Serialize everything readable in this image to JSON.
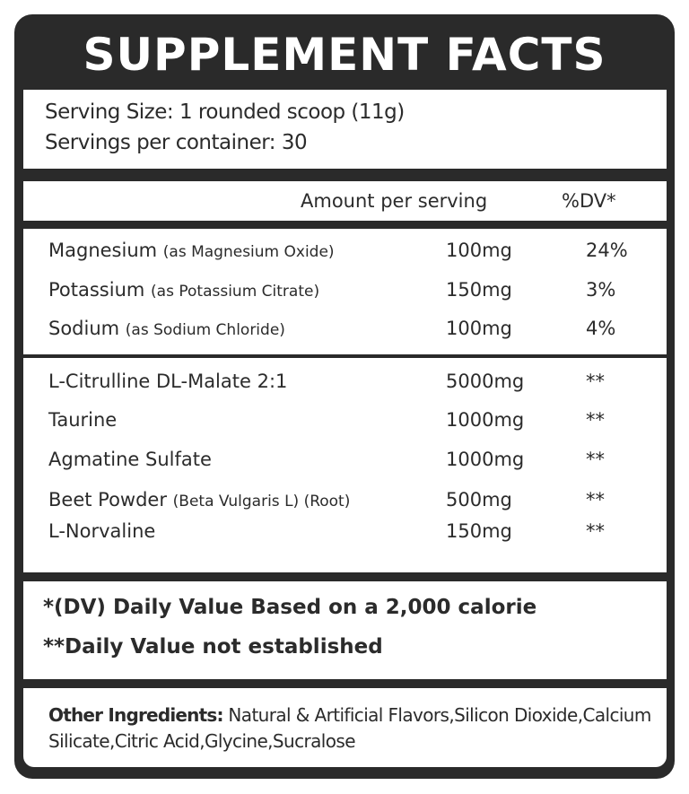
{
  "title": "SUPPLEMENT FACTS",
  "serving_size": "Serving Size: 1 rounded scoop (11g)",
  "servings_per_container": "Servings per container: 30",
  "header": {
    "amount": "Amount per serving",
    "dv": "%DV*"
  },
  "minerals": [
    {
      "name": "Magnesium",
      "source": "(as Magnesium Oxide)",
      "amount": "100mg",
      "dv": "24%"
    },
    {
      "name": "Potassium",
      "source": "(as Potassium Citrate)",
      "amount": "150mg",
      "dv": "3%"
    },
    {
      "name": "Sodium",
      "source": "(as Sodium Chloride)",
      "amount": "100mg",
      "dv": "4%"
    }
  ],
  "blend": [
    {
      "name": "L-Citrulline DL-Malate 2:1",
      "source": "",
      "amount": "5000mg",
      "dv": "**"
    },
    {
      "name": "Taurine",
      "source": "",
      "amount": "1000mg",
      "dv": "**"
    },
    {
      "name": "Agmatine Sulfate",
      "source": "",
      "amount": "1000mg",
      "dv": "**"
    },
    {
      "name": "Beet Powder",
      "source": "(Beta Vulgaris L) (Root)",
      "amount": "500mg",
      "dv": "**"
    },
    {
      "name": "L-Norvaline",
      "source": "",
      "amount": "150mg",
      "dv": "**"
    }
  ],
  "notes": {
    "dv": "*(DV) Daily Value Based on a 2,000 calorie",
    "not_established": "**Daily Value not established"
  },
  "other_ingredients": {
    "label": "Other Ingredients:",
    "text": "Natural & Artificial Flavors,Silicon Dioxide,Calcium Silicate,Citric Acid,Glycine,Sucralose"
  }
}
